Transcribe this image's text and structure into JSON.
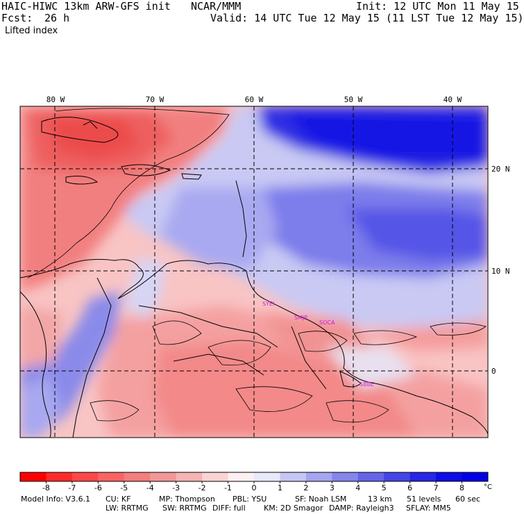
{
  "header": {
    "model": "HAIC-HIWC 13km ARW-GFS init",
    "org": "NCAR/MMM",
    "init": "Init: 12 UTC Mon 11 May 15",
    "fcst": "Fcst:",
    "fcst_hours": "26 h",
    "valid": "Valid: 14 UTC Tue 12 May 15 (11 LST Tue 12 May 15)",
    "field": "Lifted index"
  },
  "map": {
    "lon_labels": [
      "80 W",
      "70 W",
      "60 W",
      "50 W",
      "40 W"
    ],
    "lat_labels": [
      "20 N",
      "10 N",
      "0"
    ],
    "stations": [
      "SYEI",
      "SMJP",
      "SOCA",
      "SBBE"
    ],
    "station_color": "#cc22cc"
  },
  "colorbar": {
    "ticks": [
      "-8",
      "-7",
      "-6",
      "-5",
      "-4",
      "-3",
      "-2",
      "-1",
      "0",
      "1",
      "2",
      "3",
      "4",
      "5",
      "6",
      "7",
      "8"
    ],
    "unit": "°C",
    "colors": [
      "#ff0000",
      "#ff2b2b",
      "#fd4848",
      "#f86464",
      "#f47d7d",
      "#f19797",
      "#f5b3b3",
      "#fad3d3",
      "#fef0f0",
      "#e8e8fb",
      "#c6c6f5",
      "#a5a5f0",
      "#8585ec",
      "#6565e8",
      "#4545e6",
      "#2626e5",
      "#0c0ce6",
      "#0000e6"
    ]
  },
  "footer": {
    "line1": [
      "Model Info: V3.6.1",
      "CU: KF",
      "MP: Thompson",
      "PBL: YSU",
      "SF: Noah LSM",
      "13 km",
      "51 levels",
      "60 sec"
    ],
    "line2": [
      "LW: RRTMG",
      "SW: RRTMG",
      "DIFF: full",
      "KM: 2D Smagor",
      "DAMP: Rayleigh3",
      "SFLAY: MM5"
    ]
  }
}
